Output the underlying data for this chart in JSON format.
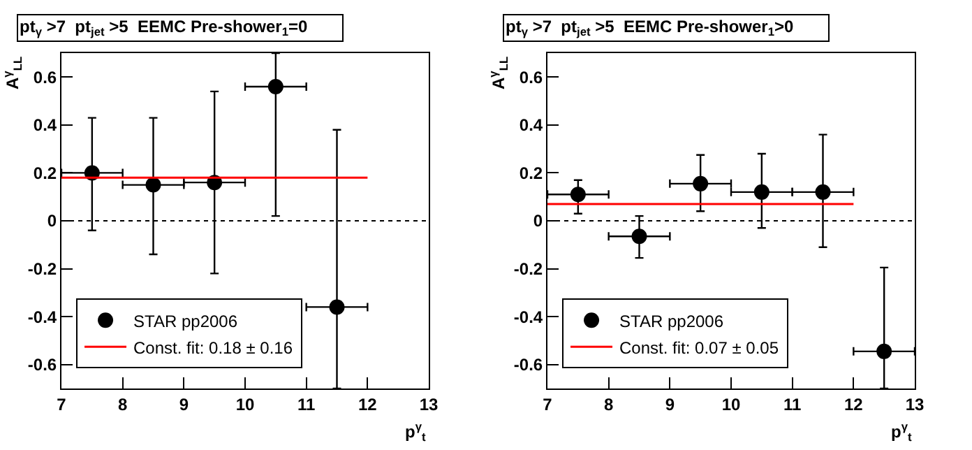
{
  "chart_data": [
    {
      "type": "scatter",
      "title": "pt$_{γ}$ >7  pt$_{jet}$ >5  EEMC Pre-shower$_{1}$=0",
      "xlabel": "p$^{γ}$$_{t}$",
      "ylabel": "A$^{γ}$$_{LL}$",
      "xlim": [
        7,
        13
      ],
      "xticks": [
        7,
        8,
        9,
        10,
        11,
        12,
        13
      ],
      "ylim": [
        -0.7,
        0.7
      ],
      "yticks": [
        -0.6,
        -0.4,
        -0.2,
        0,
        0.2,
        0.4,
        0.6
      ],
      "grid": false,
      "legend": "bottom left",
      "ref_lines": [
        {
          "axis": "y",
          "value": 0,
          "color": "#000000",
          "line_style": "dotted"
        }
      ],
      "series": [
        {
          "type": "scatter",
          "name": "STAR pp2006",
          "color": "#000000",
          "marker": "circle",
          "x": [
            7.5,
            8.5,
            9.5,
            10.5,
            11.5
          ],
          "values": [
            0.2,
            0.15,
            0.16,
            0.56,
            -0.36
          ],
          "errors": [
            [
              -0.04,
              0.43
            ],
            [
              -0.14,
              0.43
            ],
            [
              -0.22,
              0.54
            ],
            [
              0.02,
              0.7
            ],
            [
              -0.7,
              0.38
            ]
          ],
          "xerrors": [
            0.5,
            0.5,
            0.5,
            0.5,
            0.5
          ]
        },
        {
          "type": "line",
          "name": "Const. fit: 0.18 ± 0.16",
          "color": "#ff0000",
          "x": [
            7,
            12
          ],
          "values": [
            0.18,
            0.18
          ]
        }
      ]
    },
    {
      "type": "scatter",
      "title": "pt$_{γ}$ >7  pt$_{jet}$ >5  EEMC Pre-shower$_{1}$>0",
      "xlabel": "p$^{γ}$$_{t}$",
      "ylabel": "A$^{γ}$$_{LL}$",
      "xlim": [
        7,
        13
      ],
      "xticks": [
        7,
        8,
        9,
        10,
        11,
        12,
        13
      ],
      "ylim": [
        -0.7,
        0.7
      ],
      "yticks": [
        -0.6,
        -0.4,
        -0.2,
        0,
        0.2,
        0.4,
        0.6
      ],
      "grid": false,
      "legend": "bottom left",
      "ref_lines": [
        {
          "axis": "y",
          "value": 0,
          "color": "#000000",
          "line_style": "dotted"
        }
      ],
      "series": [
        {
          "type": "scatter",
          "name": "STAR pp2006",
          "color": "#000000",
          "marker": "circle",
          "x": [
            7.5,
            8.5,
            9.5,
            10.5,
            11.5,
            12.5
          ],
          "values": [
            0.11,
            -0.065,
            0.155,
            0.12,
            0.12,
            -0.545
          ],
          "errors": [
            [
              0.03,
              0.17
            ],
            [
              -0.155,
              0.02
            ],
            [
              0.04,
              0.275
            ],
            [
              -0.03,
              0.28
            ],
            [
              -0.11,
              0.36
            ],
            [
              -0.7,
              -0.195
            ]
          ],
          "xerrors": [
            0.5,
            0.5,
            0.5,
            0.5,
            0.5,
            0.5
          ]
        },
        {
          "type": "line",
          "name": "Const. fit: 0.07 ± 0.05",
          "color": "#ff0000",
          "x": [
            7,
            12
          ],
          "values": [
            0.07,
            0.07
          ]
        }
      ]
    }
  ]
}
